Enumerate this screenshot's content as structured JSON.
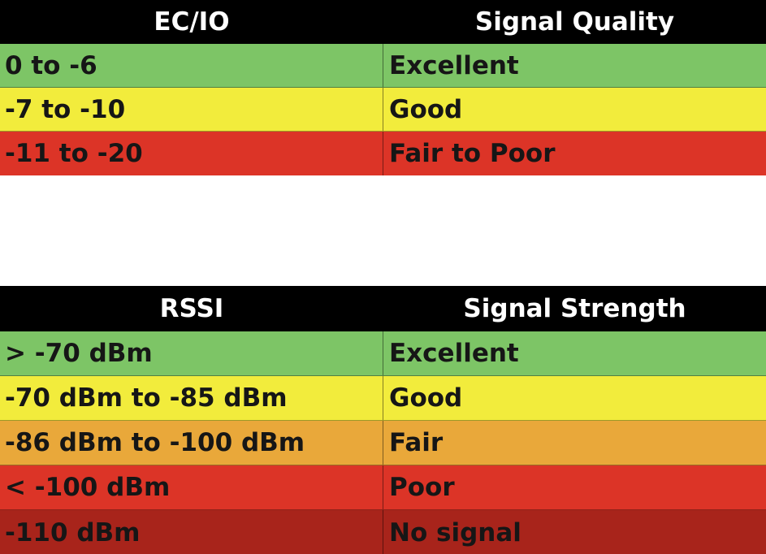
{
  "ecio_table": {
    "headers": [
      "EC/IO",
      "Signal Quality"
    ],
    "rows": [
      {
        "range": "0 to -6",
        "label": "Excellent",
        "color": "#7dc566"
      },
      {
        "range": "-7 to -10",
        "label": "Good",
        "color": "#f2ec3c"
      },
      {
        "range": "-11 to -20",
        "label": "Fair to Poor",
        "color": "#dc3427"
      }
    ]
  },
  "rssi_table": {
    "headers": [
      "RSSI",
      "Signal Strength"
    ],
    "rows": [
      {
        "range": "> -70 dBm",
        "label": "Excellent",
        "color": "#7dc566"
      },
      {
        "range": "-70 dBm to -85 dBm",
        "label": "Good",
        "color": "#f2ec3c"
      },
      {
        "range": "-86 dBm to -100 dBm",
        "label": "Fair",
        "color": "#e9a83a"
      },
      {
        "range": "< -100 dBm",
        "label": "Poor",
        "color": "#dc3427"
      },
      {
        "range": "-110 dBm",
        "label": "No signal",
        "color": "#a8241b"
      }
    ]
  }
}
